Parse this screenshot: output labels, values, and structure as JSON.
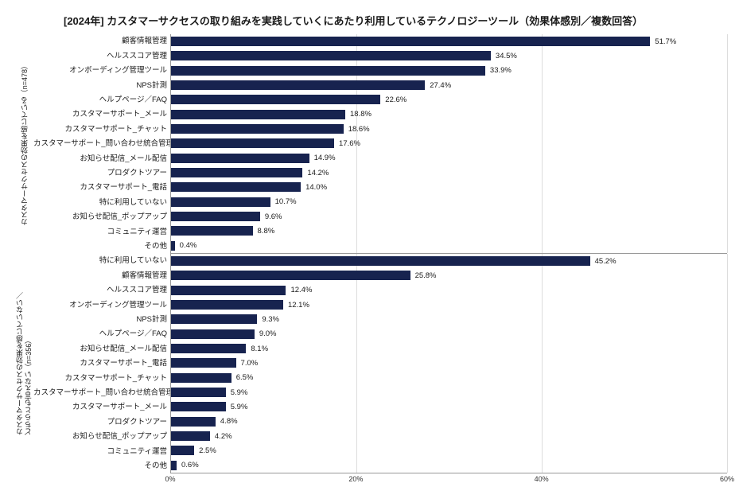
{
  "title": "[2024年] カスタマーサクセスの取り組みを実践していくにあたり利用しているテクノロジーツール（効果体感別／複数回答）",
  "chart": {
    "type": "bar",
    "orientation": "horizontal",
    "background_color": "#ffffff",
    "bar_color": "#17234f",
    "grid_color": "#dddddd",
    "axis_color": "#999999",
    "text_color": "#1a1a1a",
    "title_fontsize": 13,
    "label_fontsize": 9.5,
    "value_fontsize": 9.5,
    "group_label_fontsize": 9,
    "xtick_fontsize": 9,
    "xlim": [
      0,
      60
    ],
    "xtick_step": 20,
    "xtick_format_percent": true,
    "panels": [
      {
        "group_label": "カスタマーサクセスの効果を感じている（n=478）",
        "rows": [
          {
            "label": "顧客情報管理",
            "value": 51.7
          },
          {
            "label": "ヘルススコア管理",
            "value": 34.5
          },
          {
            "label": "オンボーディング管理ツール",
            "value": 33.9
          },
          {
            "label": "NPS計測",
            "value": 27.4
          },
          {
            "label": "ヘルプページ／FAQ",
            "value": 22.6
          },
          {
            "label": "カスタマーサポート_メール",
            "value": 18.8
          },
          {
            "label": "カスタマーサポート_チャット",
            "value": 18.6
          },
          {
            "label": "カスタマーサポート_問い合わせ統合管理",
            "value": 17.6
          },
          {
            "label": "お知らせ配信_メール配信",
            "value": 14.9
          },
          {
            "label": "プロダクトツアー",
            "value": 14.2
          },
          {
            "label": "カスタマーサポート_電話",
            "value": 14.0
          },
          {
            "label": "特に利用していない",
            "value": 10.7
          },
          {
            "label": "お知らせ配信_ポップアップ",
            "value": 9.6
          },
          {
            "label": "コミュニティ運営",
            "value": 8.8
          },
          {
            "label": "その他",
            "value": 0.4
          }
        ]
      },
      {
        "group_label": "カスタマーサクセスの効果を感じていない／\nどちらとも言えない（n=356）",
        "rows": [
          {
            "label": "特に利用していない",
            "value": 45.2
          },
          {
            "label": "顧客情報管理",
            "value": 25.8
          },
          {
            "label": "ヘルススコア管理",
            "value": 12.4
          },
          {
            "label": "オンボーディング管理ツール",
            "value": 12.1
          },
          {
            "label": "NPS計測",
            "value": 9.3
          },
          {
            "label": "ヘルプページ／FAQ",
            "value": 9.0
          },
          {
            "label": "お知らせ配信_メール配信",
            "value": 8.1
          },
          {
            "label": "カスタマーサポート_電話",
            "value": 7.0
          },
          {
            "label": "カスタマーサポート_チャット",
            "value": 6.5
          },
          {
            "label": "カスタマーサポート_問い合わせ統合管理",
            "value": 5.9
          },
          {
            "label": "カスタマーサポート_メール",
            "value": 5.9
          },
          {
            "label": "プロダクトツアー",
            "value": 4.8
          },
          {
            "label": "お知らせ配信_ポップアップ",
            "value": 4.2
          },
          {
            "label": "コミュニティ運営",
            "value": 2.5
          },
          {
            "label": "その他",
            "value": 0.6
          }
        ]
      }
    ]
  }
}
